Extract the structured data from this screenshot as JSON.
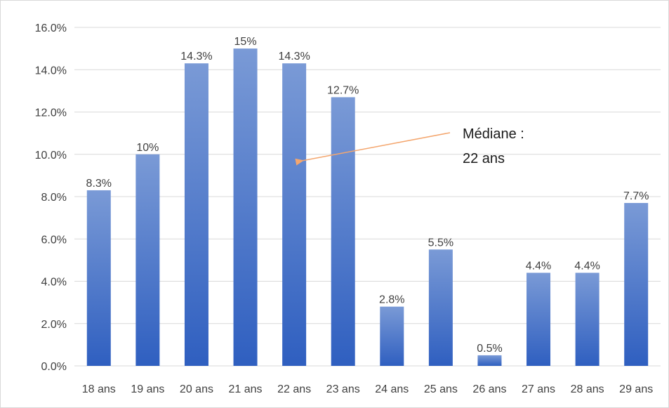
{
  "chart_data": {
    "type": "bar",
    "title": "",
    "xlabel": "",
    "ylabel": "",
    "categories": [
      "18 ans",
      "19 ans",
      "20 ans",
      "21 ans",
      "22 ans",
      "23 ans",
      "24 ans",
      "25 ans",
      "26 ans",
      "27 ans",
      "28 ans",
      "29 ans"
    ],
    "values": [
      8.3,
      10,
      14.3,
      15,
      14.3,
      12.7,
      2.8,
      5.5,
      0.5,
      4.4,
      4.4,
      7.7
    ],
    "data_labels": [
      "8.3%",
      "10%",
      "14.3%",
      "15%",
      "14.3%",
      "12.7%",
      "2.8%",
      "5.5%",
      "0.5%",
      "4.4%",
      "4.4%",
      "7.7%"
    ],
    "ylim": [
      0,
      16
    ],
    "yticks": [
      0,
      2,
      4,
      6,
      8,
      10,
      12,
      14,
      16
    ],
    "ytick_labels": [
      "0.0%",
      "2.0%",
      "4.0%",
      "6.0%",
      "8.0%",
      "10.0%",
      "12.0%",
      "14.0%",
      "16.0%"
    ],
    "grid": true,
    "legend": "none",
    "colors": {
      "bar_top": "#7a9ad6",
      "bar_bottom": "#2f5fc0",
      "arrow": "#f4a66e"
    },
    "annotation": {
      "lines": [
        "Médiane :",
        "22 ans"
      ],
      "target_category": "22 ans",
      "target_value": 9.7
    }
  }
}
